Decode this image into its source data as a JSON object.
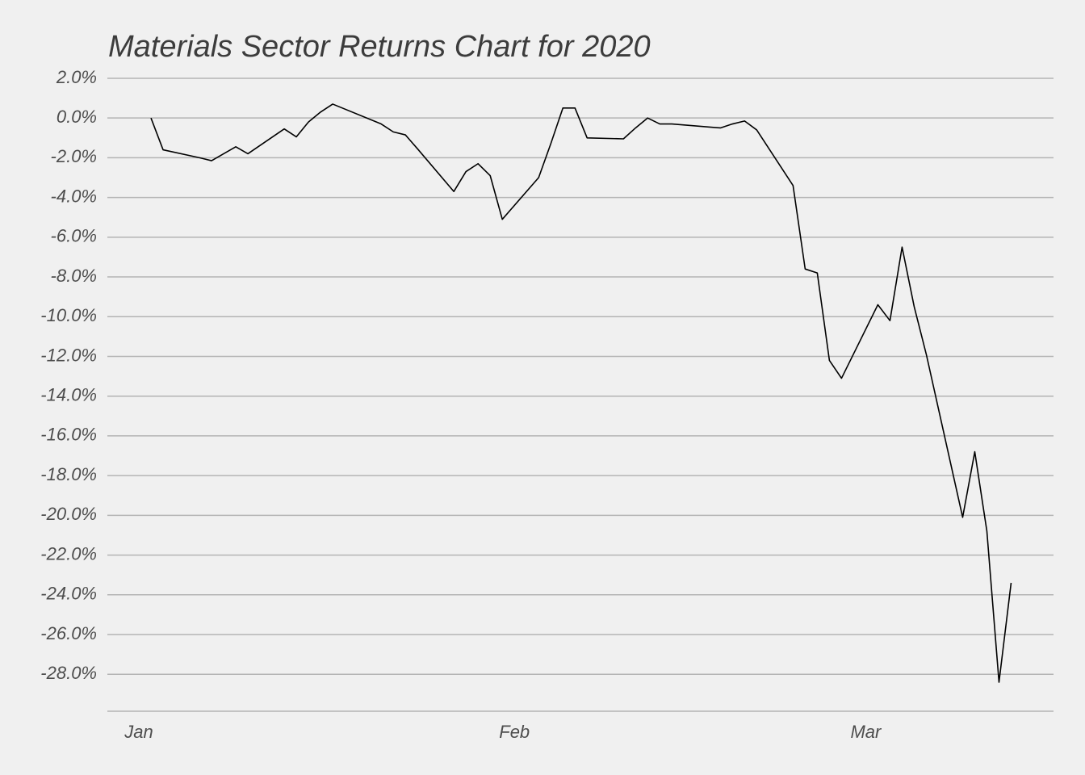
{
  "chart_data": {
    "type": "line",
    "title": "Materials Sector Returns Chart for 2020",
    "x": [
      1,
      2,
      5,
      6,
      7,
      8,
      9,
      12,
      13,
      14,
      15,
      16,
      20,
      21,
      22,
      23,
      26,
      27,
      28,
      29,
      30,
      33,
      34,
      35,
      36,
      37,
      40,
      41,
      42,
      43,
      44,
      48,
      49,
      50,
      51,
      54,
      55,
      56,
      57,
      58,
      61,
      62,
      63,
      64,
      65,
      68,
      69,
      70,
      71,
      72
    ],
    "series": [
      {
        "name": "Materials",
        "color": "#000000",
        "values": [
          0.0,
          -1.6,
          -2.0,
          -2.15,
          -1.8,
          -1.45,
          -1.8,
          -0.55,
          -0.95,
          -0.2,
          0.3,
          0.7,
          -0.3,
          -0.7,
          -0.85,
          -1.55,
          -3.7,
          -2.7,
          -2.3,
          -2.9,
          -5.1,
          -3.0,
          -1.3,
          0.5,
          0.5,
          -1.0,
          -1.05,
          -0.5,
          0.0,
          -0.3,
          -0.3,
          -0.5,
          -0.3,
          -0.15,
          -0.6,
          -3.4,
          -7.6,
          -7.8,
          -12.2,
          -13.1,
          -9.4,
          -10.2,
          -6.5,
          -9.5,
          -11.9,
          -20.1,
          -16.8,
          -20.8,
          -28.4,
          -23.4
        ]
      }
    ],
    "xlim": [
      -2.6,
      75.5
    ],
    "xticks": [
      {
        "value": 0,
        "label": "Jan"
      },
      {
        "value": 31,
        "label": "Feb"
      },
      {
        "value": 60,
        "label": "Mar"
      }
    ],
    "ylim": [
      -29.86,
      2.16
    ],
    "yticks": [
      {
        "value": 2,
        "label": "2.0%"
      },
      {
        "value": 0,
        "label": "0.0%"
      },
      {
        "value": -2,
        "label": "-2.0%"
      },
      {
        "value": -4,
        "label": "-4.0%"
      },
      {
        "value": -6,
        "label": "-6.0%"
      },
      {
        "value": -8,
        "label": "-8.0%"
      },
      {
        "value": -10,
        "label": "-10.0%"
      },
      {
        "value": -12,
        "label": "-12.0%"
      },
      {
        "value": -14,
        "label": "-14.0%"
      },
      {
        "value": -16,
        "label": "-16.0%"
      },
      {
        "value": -18,
        "label": "-18.0%"
      },
      {
        "value": -20,
        "label": "-20.0%"
      },
      {
        "value": -22,
        "label": "-22.0%"
      },
      {
        "value": -24,
        "label": "-24.0%"
      },
      {
        "value": -26,
        "label": "-26.0%"
      },
      {
        "value": -28,
        "label": "-28.0%"
      }
    ],
    "grid": true
  }
}
